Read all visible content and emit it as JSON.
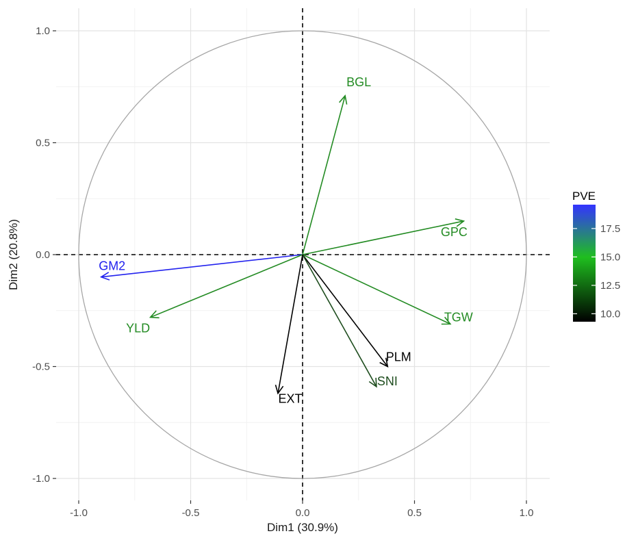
{
  "chart_data": {
    "type": "scatter",
    "subtype": "pca-correlation-circle",
    "xlabel": "Dim1 (30.9%)",
    "ylabel": "Dim2 (20.8%)",
    "xlim": [
      -1.0,
      1.0
    ],
    "ylim": [
      -1.0,
      1.0
    ],
    "x_ticks": [
      -1.0,
      -0.5,
      0.0,
      0.5,
      1.0
    ],
    "y_ticks": [
      -1.0,
      -0.5,
      0.0,
      0.5,
      1.0
    ],
    "x_tick_labels": [
      "-1.0",
      "-0.5",
      "0.0",
      "0.5",
      "1.0"
    ],
    "y_tick_labels": [
      "-1.0",
      "-0.5",
      "0.0",
      "0.5",
      "1.0"
    ],
    "grid": true,
    "reference_lines": {
      "x": 0,
      "y": 0,
      "style": "dashed"
    },
    "unit_circle": true,
    "variables": [
      {
        "label": "BGL",
        "x": 0.19,
        "y": 0.71,
        "pve": 15.0
      },
      {
        "label": "GPC",
        "x": 0.72,
        "y": 0.15,
        "pve": 15.0
      },
      {
        "label": "GM2",
        "x": -0.9,
        "y": -0.1,
        "pve": 19.5
      },
      {
        "label": "YLD",
        "x": -0.68,
        "y": -0.28,
        "pve": 15.0
      },
      {
        "label": "TGW",
        "x": 0.66,
        "y": -0.31,
        "pve": 15.0
      },
      {
        "label": "PLM",
        "x": 0.38,
        "y": -0.5,
        "pve": 9.5
      },
      {
        "label": "SNI",
        "x": 0.33,
        "y": -0.59,
        "pve": 12.0
      },
      {
        "label": "EXT",
        "x": -0.11,
        "y": -0.62,
        "pve": 9.5
      }
    ],
    "legend": {
      "title": "PVE",
      "position": "right",
      "ticks": [
        17.5,
        15.0,
        12.5,
        10.0
      ],
      "tick_labels": [
        "17.5",
        "15.0",
        "12.5",
        "10.0"
      ],
      "range": [
        9.3,
        19.6
      ],
      "colors": {
        "low": "#000000",
        "mid": "#1fbf1f",
        "high": "#3333ff",
        "mid_value": 15.0
      }
    }
  }
}
